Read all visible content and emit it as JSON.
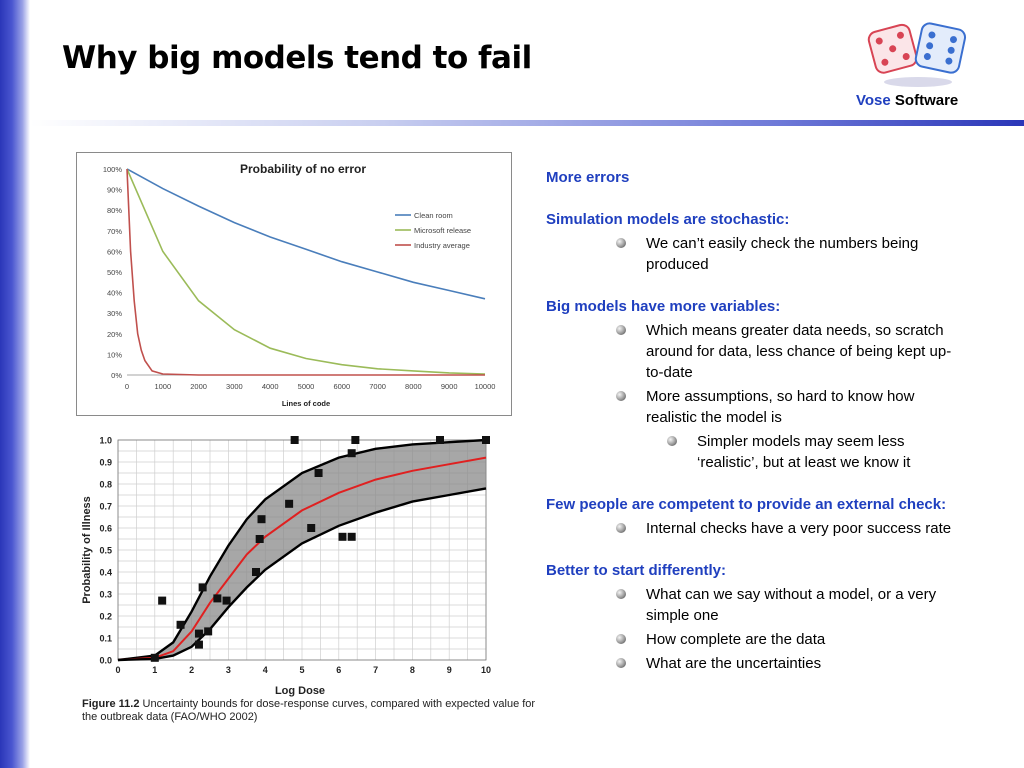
{
  "slide": {
    "title": "Why big models tend to fail",
    "logo": {
      "word1": "Vose",
      "word2": "Software"
    }
  },
  "content": {
    "sections": [
      {
        "heading": "More errors",
        "bullets": []
      },
      {
        "heading": "Simulation models are stochastic:",
        "bullets": [
          {
            "text": "We can’t easily check the numbers being produced",
            "sub": []
          }
        ]
      },
      {
        "heading": "Big models have more variables:",
        "bullets": [
          {
            "text": "Which means greater data needs, so scratch around for data, less chance of being kept up-to-date",
            "sub": []
          },
          {
            "text": "More assumptions, so hard to know how realistic the model is",
            "sub": [
              "Simpler models may seem less ‘realistic’, but at least we know it"
            ]
          }
        ]
      },
      {
        "heading": "Few people are competent to provide an external check:",
        "bullets": [
          {
            "text": "Internal checks have a very poor success rate",
            "sub": []
          }
        ]
      },
      {
        "heading": "Better to start differently:",
        "bullets": [
          {
            "text": "What can we say without a model, or a very simple one",
            "sub": []
          },
          {
            "text": "How complete are the data",
            "sub": []
          },
          {
            "text": "What are the uncertainties",
            "sub": []
          }
        ]
      }
    ]
  },
  "caption": {
    "label": "Figure 11.2",
    "text": " Uncertainty bounds for dose-response curves, compared with expected value for the outbreak data (FAO/WHO 2002)"
  },
  "chart_data": [
    {
      "type": "line",
      "title": "Probability of no error",
      "xlabel": "Lines of code",
      "ylabel": "",
      "xlim": [
        0,
        10000
      ],
      "ylim": [
        0,
        1
      ],
      "x_ticks": [
        "0",
        "1000",
        "2000",
        "3000",
        "4000",
        "5000",
        "6000",
        "7000",
        "8000",
        "9000",
        "10000"
      ],
      "y_ticks": [
        "0%",
        "10%",
        "20%",
        "30%",
        "40%",
        "50%",
        "60%",
        "70%",
        "80%",
        "90%",
        "100%"
      ],
      "legend": "right",
      "series": [
        {
          "name": "Clean room",
          "color": "#4a7ebb",
          "x": [
            0,
            1000,
            2000,
            3000,
            4000,
            5000,
            6000,
            7000,
            8000,
            9000,
            10000
          ],
          "y": [
            1.0,
            0.905,
            0.82,
            0.74,
            0.67,
            0.61,
            0.55,
            0.5,
            0.45,
            0.41,
            0.37
          ]
        },
        {
          "name": "Microsoft release",
          "color": "#9bbb59",
          "x": [
            0,
            1000,
            2000,
            3000,
            4000,
            5000,
            6000,
            7000,
            8000,
            9000,
            10000
          ],
          "y": [
            1.0,
            0.6,
            0.36,
            0.22,
            0.13,
            0.08,
            0.05,
            0.03,
            0.02,
            0.01,
            0.005
          ]
        },
        {
          "name": "Industry average",
          "color": "#c0504d",
          "x": [
            0,
            100,
            200,
            300,
            400,
            500,
            700,
            1000,
            2000,
            5000,
            10000
          ],
          "y": [
            1.0,
            0.6,
            0.36,
            0.2,
            0.12,
            0.07,
            0.02,
            0.005,
            0.0,
            0.0,
            0.0
          ]
        }
      ]
    },
    {
      "type": "line",
      "title": "",
      "xlabel": "Log Dose",
      "ylabel": "Probability of Illness",
      "xlim": [
        0,
        10
      ],
      "ylim": [
        0,
        1
      ],
      "x_ticks": [
        "0",
        "1",
        "2",
        "3",
        "4",
        "5",
        "6",
        "7",
        "8",
        "9",
        "10"
      ],
      "y_ticks": [
        "0.0",
        "0.1",
        "0.2",
        "0.3",
        "0.4",
        "0.5",
        "0.6",
        "0.7",
        "0.8",
        "0.9",
        "1.0"
      ],
      "series": [
        {
          "style": "upper-bound",
          "color": "#000000",
          "x": [
            0,
            1,
            1.5,
            2,
            2.5,
            3,
            3.5,
            4,
            5,
            6,
            7,
            8,
            9,
            10
          ],
          "y": [
            0.0,
            0.02,
            0.08,
            0.22,
            0.38,
            0.52,
            0.64,
            0.73,
            0.85,
            0.92,
            0.96,
            0.98,
            0.99,
            1.0
          ]
        },
        {
          "style": "expected",
          "color": "#e02020",
          "x": [
            0,
            1,
            1.5,
            2,
            2.5,
            3,
            3.5,
            4,
            5,
            6,
            7,
            8,
            9,
            10
          ],
          "y": [
            0.0,
            0.01,
            0.04,
            0.13,
            0.26,
            0.37,
            0.48,
            0.56,
            0.68,
            0.76,
            0.82,
            0.86,
            0.89,
            0.92
          ]
        },
        {
          "style": "lower-bound",
          "color": "#000000",
          "x": [
            0,
            1,
            1.5,
            2,
            2.5,
            3,
            3.5,
            4,
            5,
            6,
            7,
            8,
            9,
            10
          ],
          "y": [
            0.0,
            0.005,
            0.02,
            0.06,
            0.14,
            0.24,
            0.33,
            0.41,
            0.53,
            0.61,
            0.67,
            0.72,
            0.75,
            0.78
          ]
        }
      ],
      "points": {
        "x": [
          1.2,
          1.7,
          2.2,
          2.3,
          2.45,
          2.7,
          2.95,
          3.75,
          3.85,
          3.9,
          4.65,
          5.25,
          5.45,
          6.1,
          6.35,
          6.35,
          6.45,
          8.75,
          10.0,
          4.8,
          1.0,
          2.2
        ],
        "y": [
          0.27,
          0.16,
          0.07,
          0.33,
          0.13,
          0.28,
          0.27,
          0.4,
          0.55,
          0.64,
          0.71,
          0.6,
          0.85,
          0.56,
          0.94,
          0.56,
          1.0,
          1.0,
          1.0,
          1.0,
          0.01,
          0.12
        ]
      }
    }
  ]
}
